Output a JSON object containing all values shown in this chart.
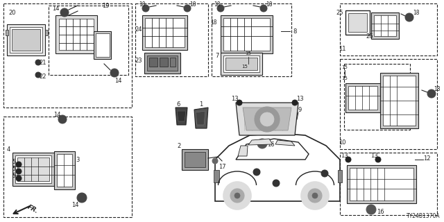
{
  "bg_color": "#ffffff",
  "diagram_code": "TY24B1370A",
  "fig_width": 6.4,
  "fig_height": 3.2,
  "dpi": 100,
  "line_color": "#222222",
  "part_fill": "#e8e8e8",
  "dark_fill": "#555555"
}
